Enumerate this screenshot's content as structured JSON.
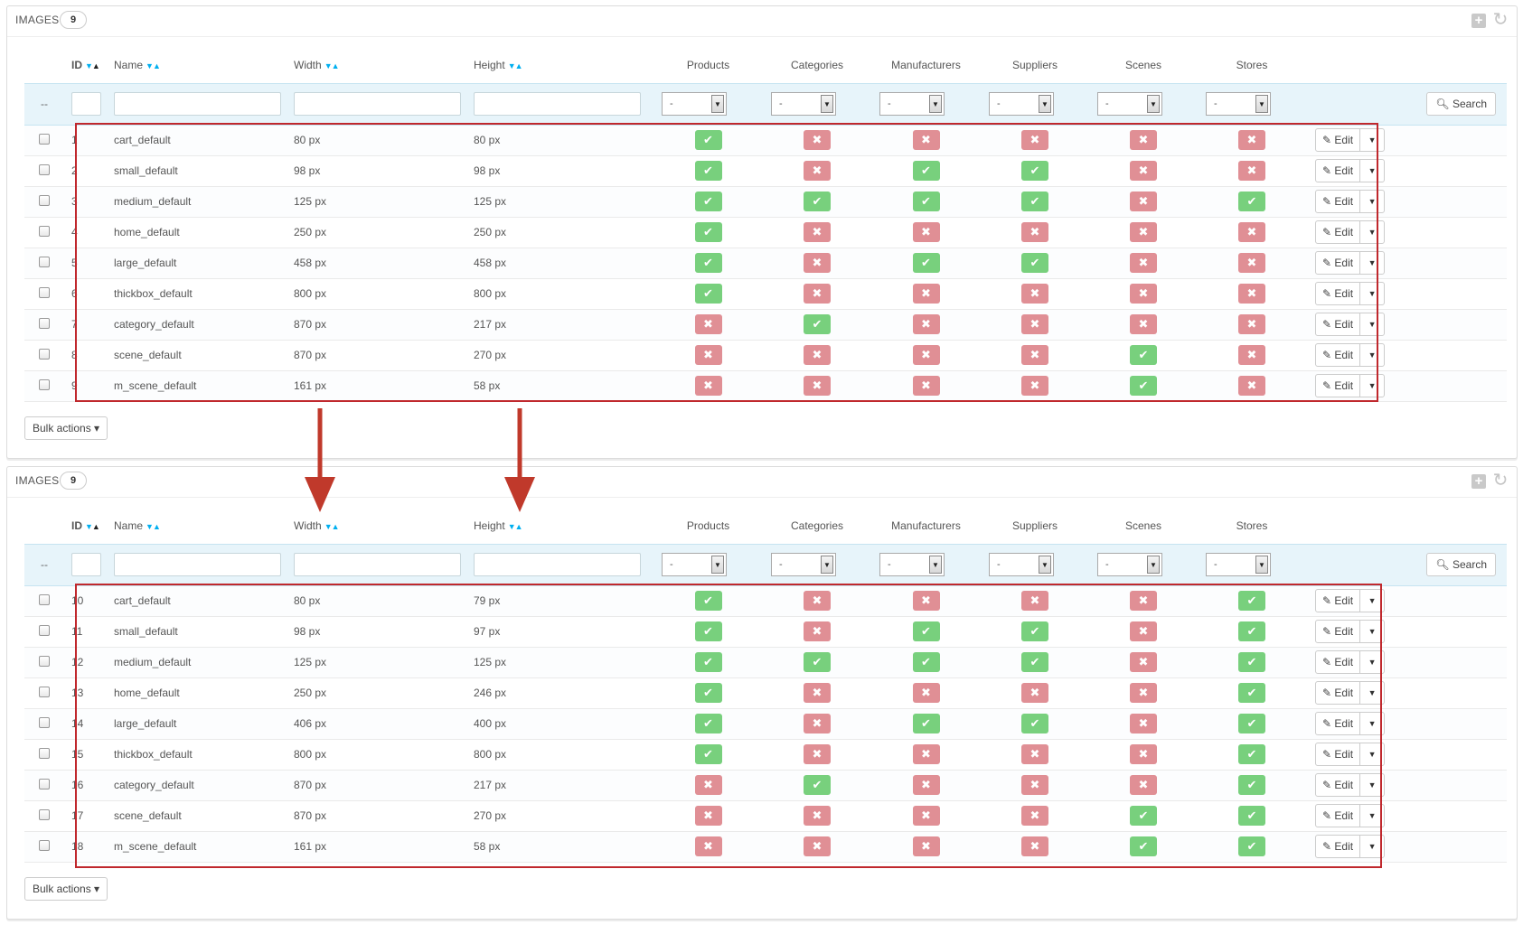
{
  "columns": {
    "id": "ID",
    "name": "Name",
    "width": "Width",
    "height": "Height",
    "products": "Products",
    "categories": "Categories",
    "manufacturers": "Manufacturers",
    "suppliers": "Suppliers",
    "scenes": "Scenes",
    "stores": "Stores"
  },
  "filter": {
    "dash": "--",
    "select_value": "-",
    "search_label": "Search"
  },
  "actions": {
    "edit_label": "Edit",
    "bulk_label": "Bulk actions"
  },
  "icons": {
    "ok": "check-icon",
    "no": "cross-icon",
    "edit": "pencil-icon",
    "search": "search-icon",
    "add": "plus-icon",
    "refresh": "refresh-icon"
  },
  "colors": {
    "ok": "#78d07d",
    "no": "#e08f95",
    "highlight": "#c0282d",
    "arrow": "#c0392b"
  },
  "panels": [
    {
      "title": "IMAGES",
      "count": "9",
      "rows": [
        {
          "id": "1",
          "name": "cart_default",
          "width": "80 px",
          "height": "80 px",
          "flags": [
            true,
            false,
            false,
            false,
            false,
            false
          ]
        },
        {
          "id": "2",
          "name": "small_default",
          "width": "98 px",
          "height": "98 px",
          "flags": [
            true,
            false,
            true,
            true,
            false,
            false
          ]
        },
        {
          "id": "3",
          "name": "medium_default",
          "width": "125 px",
          "height": "125 px",
          "flags": [
            true,
            true,
            true,
            true,
            false,
            true
          ]
        },
        {
          "id": "4",
          "name": "home_default",
          "width": "250 px",
          "height": "250 px",
          "flags": [
            true,
            false,
            false,
            false,
            false,
            false
          ]
        },
        {
          "id": "5",
          "name": "large_default",
          "width": "458 px",
          "height": "458 px",
          "flags": [
            true,
            false,
            true,
            true,
            false,
            false
          ]
        },
        {
          "id": "6",
          "name": "thickbox_default",
          "width": "800 px",
          "height": "800 px",
          "flags": [
            true,
            false,
            false,
            false,
            false,
            false
          ]
        },
        {
          "id": "7",
          "name": "category_default",
          "width": "870 px",
          "height": "217 px",
          "flags": [
            false,
            true,
            false,
            false,
            false,
            false
          ]
        },
        {
          "id": "8",
          "name": "scene_default",
          "width": "870 px",
          "height": "270 px",
          "flags": [
            false,
            false,
            false,
            false,
            true,
            false
          ]
        },
        {
          "id": "9",
          "name": "m_scene_default",
          "width": "161 px",
          "height": "58 px",
          "flags": [
            false,
            false,
            false,
            false,
            true,
            false
          ]
        }
      ]
    },
    {
      "title": "IMAGES",
      "count": "9",
      "rows": [
        {
          "id": "10",
          "name": "cart_default",
          "width": "80 px",
          "height": "79 px",
          "flags": [
            true,
            false,
            false,
            false,
            false,
            true
          ]
        },
        {
          "id": "11",
          "name": "small_default",
          "width": "98 px",
          "height": "97 px",
          "flags": [
            true,
            false,
            true,
            true,
            false,
            true
          ]
        },
        {
          "id": "12",
          "name": "medium_default",
          "width": "125 px",
          "height": "125 px",
          "flags": [
            true,
            true,
            true,
            true,
            false,
            true
          ]
        },
        {
          "id": "13",
          "name": "home_default",
          "width": "250 px",
          "height": "246 px",
          "flags": [
            true,
            false,
            false,
            false,
            false,
            true
          ]
        },
        {
          "id": "14",
          "name": "large_default",
          "width": "406 px",
          "height": "400 px",
          "flags": [
            true,
            false,
            true,
            true,
            false,
            true
          ]
        },
        {
          "id": "15",
          "name": "thickbox_default",
          "width": "800 px",
          "height": "800 px",
          "flags": [
            true,
            false,
            false,
            false,
            false,
            true
          ]
        },
        {
          "id": "16",
          "name": "category_default",
          "width": "870 px",
          "height": "217 px",
          "flags": [
            false,
            true,
            false,
            false,
            false,
            true
          ]
        },
        {
          "id": "17",
          "name": "scene_default",
          "width": "870 px",
          "height": "270 px",
          "flags": [
            false,
            false,
            false,
            false,
            true,
            true
          ]
        },
        {
          "id": "18",
          "name": "m_scene_default",
          "width": "161 px",
          "height": "58 px",
          "flags": [
            false,
            false,
            false,
            false,
            true,
            true
          ]
        }
      ]
    }
  ]
}
